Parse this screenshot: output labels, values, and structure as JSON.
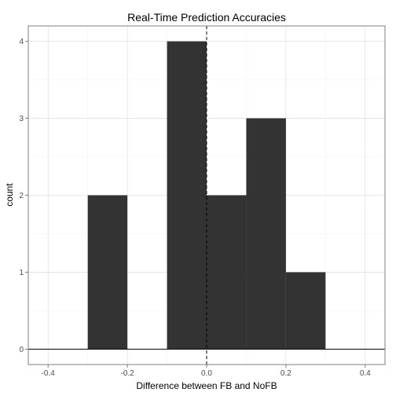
{
  "chart_data": {
    "type": "bar",
    "title": "Real-Time Prediction Accuracies",
    "xlabel": "Difference between FB and NoFB",
    "ylabel": "count",
    "xlim": [
      -0.45,
      0.45
    ],
    "ylim": [
      -0.2,
      4.2
    ],
    "x_ticks": [
      -0.4,
      -0.2,
      0.0,
      0.2,
      0.4
    ],
    "x_tick_labels": [
      "-0.4",
      "-0.2",
      "0.0",
      "0.2",
      "0.4"
    ],
    "y_ticks": [
      0,
      1,
      2,
      3,
      4
    ],
    "y_tick_labels": [
      "0",
      "1",
      "2",
      "3",
      "4"
    ],
    "bin_width": 0.1,
    "bins": [
      {
        "x_start": -0.3,
        "x_end": -0.2,
        "count": 2
      },
      {
        "x_start": -0.1,
        "x_end": 0.0,
        "count": 4
      },
      {
        "x_start": 0.0,
        "x_end": 0.1,
        "count": 2
      },
      {
        "x_start": 0.1,
        "x_end": 0.2,
        "count": 3
      },
      {
        "x_start": 0.2,
        "x_end": 0.3,
        "count": 1
      }
    ],
    "reference_lines": [
      {
        "orientation": "vertical",
        "x": 0.0,
        "style": "dashed"
      },
      {
        "orientation": "horizontal",
        "y": 0,
        "style": "solid"
      }
    ],
    "grid": true,
    "legend": "none",
    "colors": {
      "bar_fill": "#333333",
      "grid_major": "#e0e0e0",
      "grid_minor": "#f2f2f2",
      "panel_border": "#7f7f7f",
      "tick_text": "#4d4d4d"
    }
  }
}
